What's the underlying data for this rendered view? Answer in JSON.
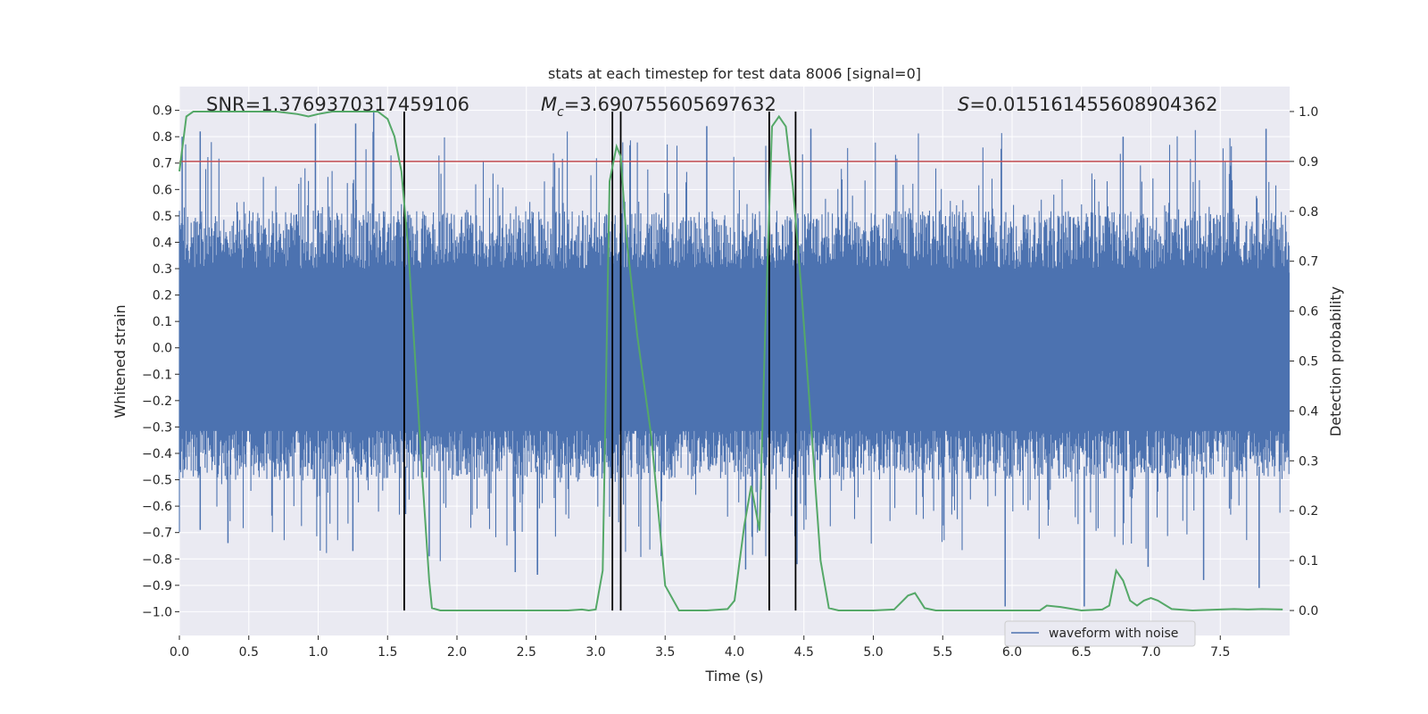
{
  "chart_data": {
    "type": "line",
    "title": "stats at each timestep for test data 8006 [signal=0]",
    "xlabel": "Time (s)",
    "ylabel_left": "Whitened strain",
    "ylabel_right": "Detection probability",
    "xlim": [
      0,
      8.0
    ],
    "ylim_left": [
      -1.09,
      0.99
    ],
    "ylim_right": [
      -0.05,
      1.05
    ],
    "x_ticks": [
      "0.0",
      "0.5",
      "1.0",
      "1.5",
      "2.0",
      "2.5",
      "3.0",
      "3.5",
      "4.0",
      "4.5",
      "5.0",
      "5.5",
      "6.0",
      "6.5",
      "7.0",
      "7.5"
    ],
    "x_tick_values": [
      0,
      0.5,
      1.0,
      1.5,
      2.0,
      2.5,
      3.0,
      3.5,
      4.0,
      4.5,
      5.0,
      5.5,
      6.0,
      6.5,
      7.0,
      7.5
    ],
    "y_left_ticks": [
      "0.9",
      "0.8",
      "0.7",
      "0.6",
      "0.5",
      "0.4",
      "0.3",
      "0.2",
      "0.1",
      "0.0",
      "−0.1",
      "−0.2",
      "−0.3",
      "−0.4",
      "−0.5",
      "−0.6",
      "−0.7",
      "−0.8",
      "−0.9",
      "−1.0"
    ],
    "y_left_tick_values": [
      0.9,
      0.8,
      0.7,
      0.6,
      0.5,
      0.4,
      0.3,
      0.2,
      0.1,
      0.0,
      -0.1,
      -0.2,
      -0.3,
      -0.4,
      -0.5,
      -0.6,
      -0.7,
      -0.8,
      -0.9,
      -1.0
    ],
    "y_right_ticks": [
      "1.0",
      "0.9",
      "0.8",
      "0.7",
      "0.6",
      "0.5",
      "0.4",
      "0.3",
      "0.2",
      "0.1",
      "0.0"
    ],
    "y_right_tick_values": [
      1.0,
      0.9,
      0.8,
      0.7,
      0.6,
      0.5,
      0.4,
      0.3,
      0.2,
      0.1,
      0.0
    ],
    "annotations": {
      "snr": "SNR=1.3769370317459106",
      "mc_symbol": "M",
      "mc_sub": "c",
      "mc_value": "=3.690755605697632",
      "s_symbol": "S",
      "s_value": "=0.015161455608904362"
    },
    "threshold": 0.9,
    "vertical_markers": [
      1.62,
      3.12,
      3.18,
      4.25,
      4.44
    ],
    "series": [
      {
        "name": "waveform with noise",
        "axis": "left",
        "kind": "noise",
        "color": "#4c72b0",
        "base_amplitude": 0.3,
        "peak_max": 0.9,
        "trough_min": -0.96,
        "tall_spikes": [
          {
            "x": 0.02,
            "y": 0.8
          },
          {
            "x": 0.15,
            "y": 0.82
          },
          {
            "x": 0.98,
            "y": 0.85
          },
          {
            "x": 1.4,
            "y": 0.9
          },
          {
            "x": 1.27,
            "y": 0.85
          },
          {
            "x": 3.8,
            "y": 0.84
          },
          {
            "x": 4.55,
            "y": 0.83
          },
          {
            "x": 6.8,
            "y": 0.8
          },
          {
            "x": 7.83,
            "y": 0.83
          },
          {
            "x": 0.35,
            "y": -0.74
          },
          {
            "x": 1.25,
            "y": -0.77
          },
          {
            "x": 1.8,
            "y": -0.79
          },
          {
            "x": 2.42,
            "y": -0.85
          },
          {
            "x": 2.58,
            "y": -0.85
          },
          {
            "x": 2.58,
            "y": -0.86
          },
          {
            "x": 4.08,
            "y": -0.84
          },
          {
            "x": 4.45,
            "y": -0.82
          },
          {
            "x": 5.95,
            "y": -0.98
          },
          {
            "x": 6.52,
            "y": -0.98
          },
          {
            "x": 6.98,
            "y": -0.83
          },
          {
            "x": 7.38,
            "y": -0.88
          },
          {
            "x": 7.78,
            "y": -0.91
          },
          {
            "x": 1.63,
            "y": -0.63
          },
          {
            "x": 0.15,
            "y": -0.69
          }
        ]
      },
      {
        "name": "detection probability",
        "axis": "right",
        "color": "#55a868",
        "x": [
          0.0,
          0.05,
          0.1,
          0.3,
          0.5,
          0.7,
          0.85,
          0.93,
          1.0,
          1.1,
          1.3,
          1.43,
          1.5,
          1.55,
          1.6,
          1.65,
          1.7,
          1.75,
          1.8,
          1.82,
          1.88,
          1.95,
          2.1,
          2.5,
          2.8,
          2.9,
          2.95,
          3.0,
          3.05,
          3.1,
          3.15,
          3.18,
          3.22,
          3.3,
          3.4,
          3.45,
          3.5,
          3.6,
          3.8,
          3.95,
          4.0,
          4.07,
          4.12,
          4.18,
          4.22,
          4.27,
          4.32,
          4.37,
          4.42,
          4.48,
          4.55,
          4.62,
          4.68,
          4.75,
          5.0,
          5.15,
          5.25,
          5.3,
          5.37,
          5.45,
          5.6,
          6.0,
          6.2,
          6.25,
          6.35,
          6.5,
          6.65,
          6.7,
          6.75,
          6.8,
          6.85,
          6.9,
          6.95,
          7.0,
          7.05,
          7.15,
          7.3,
          7.5,
          7.6,
          7.7,
          7.8,
          7.95
        ],
        "y": [
          0.88,
          0.99,
          1.0,
          1.0,
          1.0,
          1.0,
          0.995,
          0.99,
          0.995,
          1.0,
          1.0,
          1.0,
          0.985,
          0.95,
          0.88,
          0.72,
          0.5,
          0.27,
          0.06,
          0.005,
          0.0,
          0.0,
          0.0,
          0.0,
          0.0,
          0.002,
          0.0,
          0.002,
          0.08,
          0.86,
          0.93,
          0.91,
          0.75,
          0.55,
          0.35,
          0.2,
          0.05,
          0.0,
          0.0,
          0.003,
          0.02,
          0.17,
          0.25,
          0.16,
          0.55,
          0.97,
          0.99,
          0.97,
          0.85,
          0.65,
          0.38,
          0.1,
          0.005,
          0.0,
          0.0,
          0.002,
          0.03,
          0.035,
          0.005,
          0.0,
          0.0,
          0.0,
          0.0,
          0.01,
          0.007,
          0.0,
          0.002,
          0.01,
          0.08,
          0.06,
          0.02,
          0.01,
          0.02,
          0.025,
          0.02,
          0.003,
          0.0,
          0.002,
          0.003,
          0.002,
          0.003,
          0.002
        ]
      }
    ],
    "legend": {
      "entries": [
        "waveform with noise"
      ],
      "placement": "lower-right"
    },
    "colors": {
      "background": "#eaeaf2",
      "grid": "#ffffff",
      "threshold_line": "#c44e52",
      "marker_line": "#000000"
    }
  }
}
